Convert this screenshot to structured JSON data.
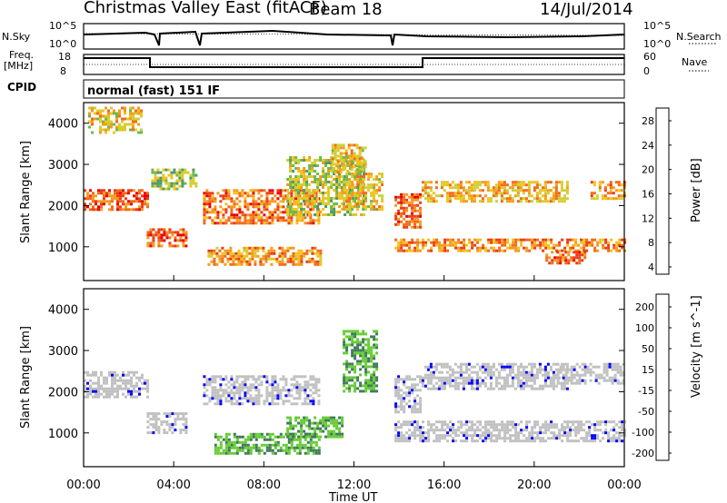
{
  "header": {
    "station": "Christmas Valley East (fitACF)",
    "beam": "Beam 18",
    "date": "14/Jul/2014"
  },
  "scan_panel": {
    "left_label": "N.Sky",
    "left_ticks": [
      "10^5",
      "10^0"
    ],
    "right_label": "N.Search",
    "right_ticks": [
      "10^5",
      "10^0"
    ],
    "line_style": "dotted"
  },
  "freq_panel": {
    "left_label_1": "Freq.",
    "left_label_2": "[MHz]",
    "left_ticks": [
      "18",
      "8"
    ],
    "right_label": "Nave",
    "right_ticks": [
      "60",
      "0"
    ],
    "line_style": "dotted"
  },
  "cpid": {
    "label": "CPID",
    "value": "normal (fast) 151 IF"
  },
  "x_axis": {
    "label": "Time UT",
    "ticks": [
      "00:00",
      "04:00",
      "08:00",
      "12:00",
      "16:00",
      "20:00",
      "00:00"
    ]
  },
  "chart_data": [
    {
      "type": "heatmap",
      "name": "power",
      "ylabel": "Slant Range [km]",
      "yticks": [
        "4000",
        "3000",
        "2000",
        "1000"
      ],
      "ylim": [
        180,
        4500
      ],
      "xlim_hours": [
        0,
        24
      ],
      "colorbar_label": "Power [dB]",
      "colorbar_ticks": [
        "28",
        "24",
        "20",
        "16",
        "12",
        "8",
        "4"
      ],
      "colorbar_colors": [
        "#0000ff",
        "#2a44b8",
        "#3f6fa0",
        "#4a9a6a",
        "#6fb84a",
        "#c8d23a",
        "#f2c21a",
        "#f59a1e",
        "#f26a1a",
        "#ee3a14",
        "#e60000"
      ],
      "bands": [
        {
          "t": [
            0,
            2.8
          ],
          "r": [
            1900,
            2400
          ],
          "level": 0.85
        },
        {
          "t": [
            0.2,
            2.6
          ],
          "r": [
            3800,
            4400
          ],
          "level": 0.6
        },
        {
          "t": [
            2.8,
            4.5
          ],
          "r": [
            1050,
            1450
          ],
          "level": 0.85
        },
        {
          "t": [
            3.0,
            5.0
          ],
          "r": [
            2400,
            2900
          ],
          "level": 0.45
        },
        {
          "t": [
            5.3,
            10.5
          ],
          "r": [
            1600,
            2400
          ],
          "level": 0.8
        },
        {
          "t": [
            5.5,
            10.5
          ],
          "r": [
            600,
            1000
          ],
          "level": 0.7
        },
        {
          "t": [
            9,
            12.5
          ],
          "r": [
            1800,
            3200
          ],
          "level": 0.5
        },
        {
          "t": [
            11.0,
            12.5
          ],
          "r": [
            2800,
            3500
          ],
          "level": 0.6
        },
        {
          "t": [
            11.5,
            13.2
          ],
          "r": [
            1900,
            2800
          ],
          "level": 0.6
        },
        {
          "t": [
            13.8,
            15.0
          ],
          "r": [
            1500,
            2300
          ],
          "level": 0.85
        },
        {
          "t": [
            13.8,
            24
          ],
          "r": [
            900,
            1200
          ],
          "level": 0.75
        },
        {
          "t": [
            15,
            21.5
          ],
          "r": [
            2100,
            2600
          ],
          "level": 0.65
        },
        {
          "t": [
            20.5,
            22.3
          ],
          "r": [
            600,
            900
          ],
          "level": 0.8
        },
        {
          "t": [
            22.5,
            24
          ],
          "r": [
            2200,
            2600
          ],
          "level": 0.7
        }
      ]
    },
    {
      "type": "heatmap",
      "name": "velocity",
      "ylabel": "Slant Range [km]",
      "yticks": [
        "4000",
        "3000",
        "2000",
        "1000"
      ],
      "ylim": [
        180,
        4500
      ],
      "xlim_hours": [
        0,
        24
      ],
      "colorbar_label": "Velocity [m s^-1]",
      "colorbar_ticks": [
        "200",
        "100",
        "50",
        "15",
        "-15",
        "-50",
        "-100",
        "-200"
      ],
      "colorbar_colors": [
        "#0000ff",
        "#2a44b8",
        "#3f7a5a",
        "#66cc33",
        "#c0c0c0",
        "#ffb000",
        "#ff7000",
        "#ff3000",
        "#e60000"
      ],
      "bands": [
        {
          "t": [
            0,
            2.8
          ],
          "r": [
            1900,
            2500
          ],
          "level": "ground"
        },
        {
          "t": [
            2.8,
            4.5
          ],
          "r": [
            1000,
            1500
          ],
          "level": "ground"
        },
        {
          "t": [
            5.3,
            10.5
          ],
          "r": [
            1700,
            2400
          ],
          "level": "ground"
        },
        {
          "t": [
            5.8,
            10.5
          ],
          "r": [
            500,
            1000
          ],
          "level": "positive"
        },
        {
          "t": [
            9,
            11.5
          ],
          "r": [
            900,
            1400
          ],
          "level": "positive"
        },
        {
          "t": [
            11.5,
            13.0
          ],
          "r": [
            2000,
            3500
          ],
          "level": "positive"
        },
        {
          "t": [
            13.8,
            15.0
          ],
          "r": [
            1500,
            2400
          ],
          "level": "ground"
        },
        {
          "t": [
            15,
            21.5
          ],
          "r": [
            2100,
            2700
          ],
          "level": "ground"
        },
        {
          "t": [
            13.8,
            24
          ],
          "r": [
            800,
            1300
          ],
          "level": "ground"
        },
        {
          "t": [
            21,
            24
          ],
          "r": [
            2200,
            2700
          ],
          "level": "ground"
        }
      ]
    }
  ]
}
